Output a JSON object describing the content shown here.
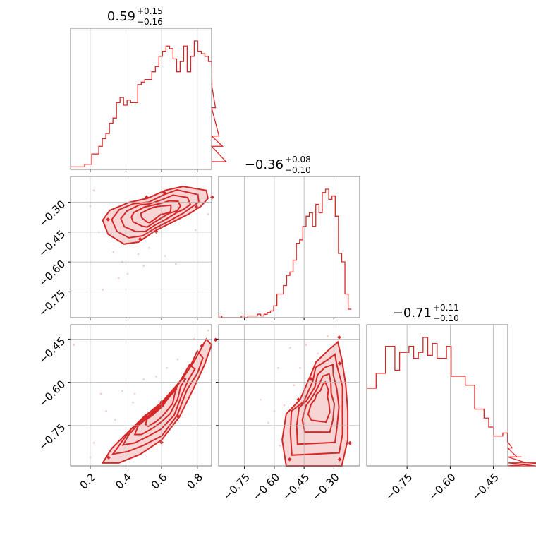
{
  "colors": {
    "series": "#d62728",
    "light": "#f3b3b3",
    "frame": "#808080",
    "grid": "#b0b0b0"
  },
  "chart_data": {
    "type": "corner",
    "grid": true,
    "parameters": [
      {
        "summary": {
          "median": "0.59",
          "plus": "+0.15",
          "minus": "−0.16"
        },
        "range": [
          0.09,
          0.88
        ],
        "ticks": [
          {
            "v": 0.2,
            "label": "0.2"
          },
          {
            "v": 0.4,
            "label": "0.4"
          },
          {
            "v": 0.6,
            "label": "0.6"
          },
          {
            "v": 0.8,
            "label": "0.8"
          }
        ],
        "histogram": {
          "start": 0.09,
          "step": 0.0198,
          "counts": [
            1,
            1,
            1,
            1,
            2,
            2,
            6,
            6,
            9,
            12,
            14,
            18,
            20,
            26,
            28,
            25,
            27,
            26,
            26,
            33,
            34,
            35,
            35,
            38,
            40,
            44,
            46,
            48,
            47,
            43,
            38,
            42,
            48,
            38,
            44,
            50,
            46,
            45,
            44,
            42,
            33,
            24,
            13,
            9,
            3
          ]
        }
      },
      {
        "summary": {
          "median": "−0.36",
          "plus": "+0.08",
          "minus": "−0.10"
        },
        "range": [
          -0.88,
          -0.17
        ],
        "ticks": [
          {
            "v": -0.75,
            "label": "−0.75"
          },
          {
            "v": -0.6,
            "label": "−0.60"
          },
          {
            "v": -0.45,
            "label": "−0.45"
          },
          {
            "v": -0.3,
            "label": "−0.30"
          }
        ],
        "histogram": {
          "start": -0.88,
          "step": 0.0163,
          "counts": [
            1,
            0,
            0,
            0,
            0,
            0,
            0,
            1,
            0,
            1,
            1,
            1,
            2,
            1,
            2,
            3,
            4,
            7,
            14,
            14,
            19,
            25,
            27,
            34,
            44,
            46,
            54,
            60,
            62,
            54,
            67,
            62,
            74,
            76,
            70,
            72,
            60,
            38,
            33,
            14,
            5
          ]
        }
      },
      {
        "summary": {
          "median": "−0.71",
          "plus": "+0.11",
          "minus": "−0.10"
        },
        "range": [
          -0.89,
          -0.4
        ],
        "ticks": [
          {
            "v": -0.75,
            "label": "−0.75"
          },
          {
            "v": -0.6,
            "label": "−0.60"
          },
          {
            "v": -0.45,
            "label": "−0.45"
          }
        ],
        "histogram": {
          "start": -0.89,
          "step": 0.0163,
          "counts": [
            26,
            26,
            31,
            31,
            40,
            40,
            32,
            38,
            38,
            40,
            36,
            38,
            43,
            37,
            41,
            36,
            36,
            40,
            30,
            30,
            30,
            27,
            27,
            19,
            19,
            16,
            13,
            10,
            10,
            11,
            8,
            6,
            3,
            3,
            1,
            1,
            0,
            0,
            1,
            1
          ]
        }
      }
    ],
    "pairs": [
      {
        "x_param": 0,
        "y_param": 1,
        "regions": [
          [
            [
              0.27,
              -0.39
            ],
            [
              0.31,
              -0.34
            ],
            [
              0.42,
              -0.3
            ],
            [
              0.52,
              -0.28
            ],
            [
              0.62,
              -0.24
            ],
            [
              0.72,
              -0.22
            ],
            [
              0.85,
              -0.24
            ],
            [
              0.86,
              -0.28
            ],
            [
              0.82,
              -0.32
            ],
            [
              0.75,
              -0.36
            ],
            [
              0.66,
              -0.4
            ],
            [
              0.57,
              -0.44
            ],
            [
              0.47,
              -0.5
            ],
            [
              0.39,
              -0.51
            ],
            [
              0.3,
              -0.46
            ]
          ]
        ],
        "points": [
          [
            0.2,
            -0.32
          ],
          [
            0.25,
            -0.45
          ],
          [
            0.27,
            -0.74
          ],
          [
            0.33,
            -0.55
          ],
          [
            0.38,
            -0.6
          ],
          [
            0.41,
            -0.66
          ],
          [
            0.47,
            -0.56
          ],
          [
            0.53,
            -0.53
          ],
          [
            0.62,
            -0.57
          ],
          [
            0.68,
            -0.61
          ],
          [
            0.79,
            -0.44
          ],
          [
            0.86,
            -0.36
          ],
          [
            0.22,
            -0.24
          ],
          [
            0.36,
            -0.68
          ],
          [
            0.5,
            -0.62
          ]
        ]
      },
      {
        "x_param": 0,
        "y_param": 2,
        "regions": [
          [
            [
              0.27,
              -0.88
            ],
            [
              0.36,
              -0.88
            ],
            [
              0.48,
              -0.85
            ],
            [
              0.6,
              -0.8
            ],
            [
              0.7,
              -0.72
            ],
            [
              0.78,
              -0.62
            ],
            [
              0.84,
              -0.54
            ],
            [
              0.88,
              -0.47
            ],
            [
              0.85,
              -0.45
            ],
            [
              0.78,
              -0.53
            ],
            [
              0.7,
              -0.6
            ],
            [
              0.6,
              -0.67
            ],
            [
              0.5,
              -0.72
            ],
            [
              0.4,
              -0.78
            ],
            [
              0.32,
              -0.83
            ]
          ]
        ],
        "points": [
          [
            0.11,
            -0.47
          ],
          [
            0.22,
            -0.81
          ],
          [
            0.26,
            -0.64
          ],
          [
            0.29,
            -0.7
          ],
          [
            0.38,
            -0.63
          ],
          [
            0.44,
            -0.67
          ],
          [
            0.5,
            -0.59
          ],
          [
            0.57,
            -0.58
          ],
          [
            0.63,
            -0.55
          ],
          [
            0.69,
            -0.52
          ],
          [
            0.78,
            -0.45
          ],
          [
            0.86,
            -0.42
          ],
          [
            0.2,
            -0.86
          ],
          [
            0.34,
            -0.73
          ],
          [
            0.45,
            -0.64
          ]
        ]
      },
      {
        "x_param": 1,
        "y_param": 2,
        "regions": [
          [
            [
              -0.54,
              -0.89
            ],
            [
              -0.56,
              -0.8
            ],
            [
              -0.54,
              -0.71
            ],
            [
              -0.47,
              -0.66
            ],
            [
              -0.42,
              -0.58
            ],
            [
              -0.39,
              -0.53
            ],
            [
              -0.33,
              -0.49
            ],
            [
              -0.28,
              -0.46
            ],
            [
              -0.26,
              -0.52
            ],
            [
              -0.24,
              -0.61
            ],
            [
              -0.23,
              -0.7
            ],
            [
              -0.23,
              -0.8
            ],
            [
              -0.26,
              -0.89
            ]
          ]
        ],
        "points": [
          [
            -0.55,
            -0.68
          ],
          [
            -0.6,
            -0.7
          ],
          [
            -0.63,
            -0.74
          ],
          [
            -0.58,
            -0.55
          ],
          [
            -0.5,
            -0.61
          ],
          [
            -0.47,
            -0.55
          ],
          [
            -0.38,
            -0.5
          ],
          [
            -0.67,
            -0.66
          ],
          [
            -0.52,
            -0.48
          ],
          [
            -0.44,
            -0.47
          ],
          [
            -0.33,
            -0.44
          ],
          [
            -0.57,
            -0.82
          ]
        ]
      }
    ]
  }
}
